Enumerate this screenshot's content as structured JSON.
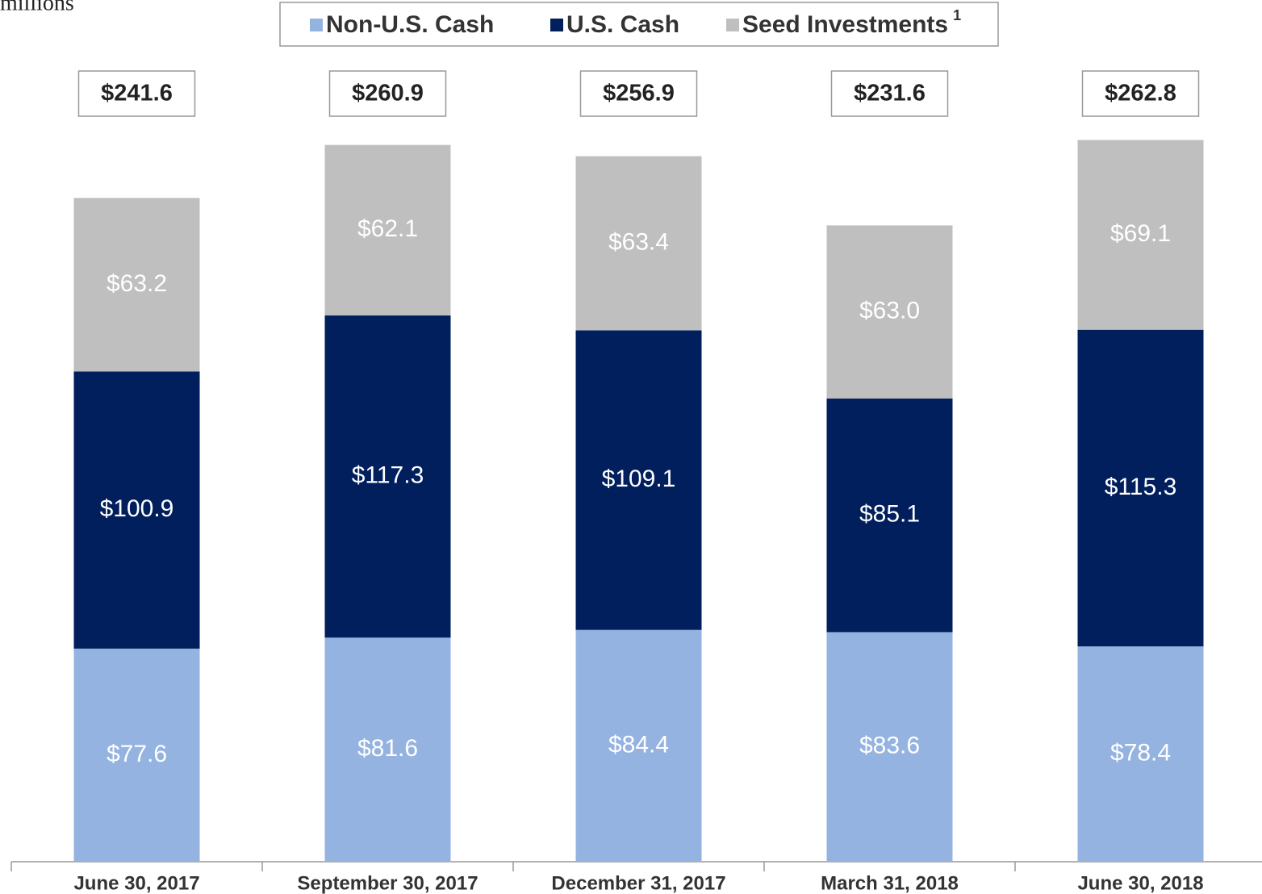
{
  "chart_data": {
    "type": "stacked_bar",
    "subtitle": "millions",
    "categories": [
      "June 30, 2017",
      "September 30, 2017",
      "December 31, 2017",
      "March 31, 2018",
      "June 30, 2018"
    ],
    "series": [
      {
        "name": "Non-U.S. Cash",
        "color": "#95b3e0",
        "values": [
          77.6,
          81.6,
          84.4,
          83.6,
          78.4
        ],
        "value_labels": [
          "$77.6",
          "$81.6",
          "$84.4",
          "$83.6",
          "$78.4"
        ]
      },
      {
        "name": "U.S. Cash",
        "color": "#001f5c",
        "values": [
          100.9,
          117.3,
          109.1,
          85.1,
          115.3
        ],
        "value_labels": [
          "$100.9",
          "$117.3",
          "$109.1",
          "$85.1",
          "$115.3"
        ]
      },
      {
        "name": "Seed Investments",
        "note": "1",
        "color": "#bfbfbf",
        "values": [
          63.2,
          62.1,
          63.4,
          63.0,
          69.1
        ],
        "value_labels": [
          "$63.2",
          "$62.1",
          "$63.4",
          "$63.0",
          "$69.1"
        ]
      }
    ],
    "totals": [
      241.6,
      260.9,
      256.9,
      231.6,
      262.8
    ],
    "total_labels": [
      "$241.6",
      "$260.9",
      "$256.9",
      "$231.6",
      "$262.8"
    ],
    "ylim": [
      0,
      270
    ]
  }
}
